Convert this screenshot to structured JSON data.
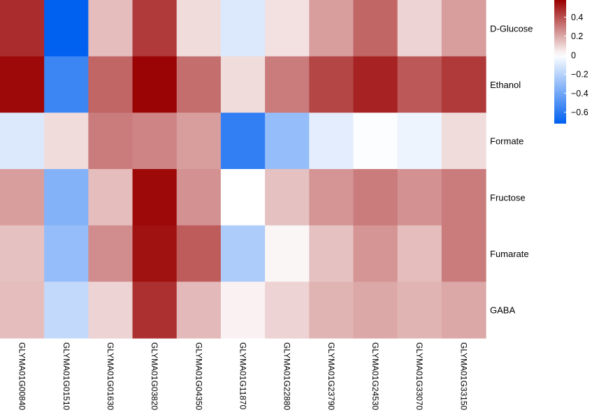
{
  "chart_data": {
    "type": "heatmap",
    "title": "",
    "xlabel": "",
    "ylabel": "",
    "columns": [
      "GLYMA01G00840",
      "GLYMA01G01510",
      "GLYMA01G01630",
      "GLYMA01G03820",
      "GLYMA01G04350",
      "GLYMA01G11870",
      "GLYMA01G22880",
      "GLYMA01G23790",
      "GLYMA01G24530",
      "GLYMA01G33070",
      "GLYMA01G33150"
    ],
    "rows": [
      "D-Glucose",
      "Ethanol",
      "Formate",
      "Fructose",
      "Fumarate",
      "GABA"
    ],
    "values": [
      [
        0.48,
        -0.72,
        0.15,
        0.45,
        0.08,
        -0.1,
        0.07,
        0.22,
        0.35,
        0.1,
        0.22
      ],
      [
        0.56,
        -0.55,
        0.35,
        0.57,
        0.33,
        0.08,
        0.3,
        0.42,
        0.5,
        0.38,
        0.45
      ],
      [
        -0.1,
        0.08,
        0.3,
        0.28,
        0.22,
        -0.58,
        -0.3,
        -0.08,
        -0.01,
        -0.05,
        0.08
      ],
      [
        0.22,
        -0.35,
        0.15,
        0.56,
        0.25,
        0.0,
        0.14,
        0.24,
        0.3,
        0.25,
        0.3
      ],
      [
        0.14,
        -0.3,
        0.26,
        0.54,
        0.37,
        -0.23,
        0.02,
        0.14,
        0.24,
        0.15,
        0.3
      ],
      [
        0.15,
        -0.17,
        0.1,
        0.47,
        0.16,
        0.03,
        0.1,
        0.17,
        0.2,
        0.17,
        0.2
      ]
    ],
    "color_scale": {
      "min": -0.72,
      "mid": 0.0,
      "max": 0.58,
      "low_color": "#0060f0",
      "mid_color": "#ffffff",
      "high_color": "#990000",
      "ticks": [
        0.4,
        0.2,
        0,
        -0.2,
        -0.4,
        -0.6
      ],
      "tick_labels": [
        "0.4",
        "0.2",
        "0",
        "−0.2",
        "−0.4",
        "−0.6"
      ]
    },
    "legend_position": "top-right"
  }
}
